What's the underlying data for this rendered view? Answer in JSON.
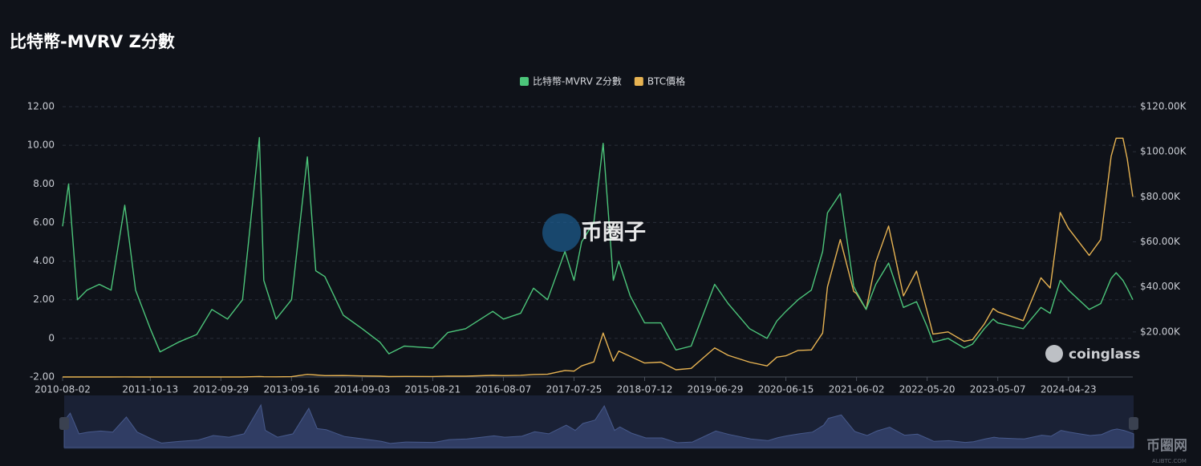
{
  "chart_data": {
    "type": "line",
    "title": "比特幣-MVRV Z分數",
    "x": [
      "2010-08-02",
      "2010-09-01",
      "2010-10-15",
      "2010-12-01",
      "2011-02-01",
      "2011-04-01",
      "2011-06-08",
      "2011-08-01",
      "2011-10-13",
      "2011-12-01",
      "2012-03-01",
      "2012-06-01",
      "2012-08-15",
      "2012-11-01",
      "2013-01-15",
      "2013-04-09",
      "2013-05-01",
      "2013-07-01",
      "2013-09-16",
      "2013-12-04",
      "2014-01-15",
      "2014-03-01",
      "2014-06-01",
      "2014-09-03",
      "2014-12-01",
      "2015-01-14",
      "2015-04-01",
      "2015-08-21",
      "2015-11-04",
      "2016-02-01",
      "2016-06-15",
      "2016-08-07",
      "2016-11-01",
      "2017-01-04",
      "2017-03-15",
      "2017-06-10",
      "2017-07-25",
      "2017-09-01",
      "2017-11-01",
      "2017-12-17",
      "2018-02-06",
      "2018-03-05",
      "2018-05-01",
      "2018-07-12",
      "2018-10-01",
      "2018-12-15",
      "2019-03-01",
      "2019-06-26",
      "2019-09-01",
      "2019-12-17",
      "2020-03-13",
      "2020-05-01",
      "2020-06-15",
      "2020-08-15",
      "2020-10-20",
      "2020-12-15",
      "2021-01-08",
      "2021-03-13",
      "2021-05-19",
      "2021-06-02",
      "2021-07-20",
      "2021-09-06",
      "2021-11-09",
      "2022-01-22",
      "2022-03-28",
      "2022-05-20",
      "2022-06-18",
      "2022-09-01",
      "2022-11-21",
      "2023-01-01",
      "2023-03-01",
      "2023-04-14",
      "2023-05-07",
      "2023-09-11",
      "2023-12-08",
      "2024-01-23",
      "2024-03-13",
      "2024-04-23",
      "2024-08-05",
      "2024-10-01",
      "2024-11-22",
      "2024-12-17",
      "2025-01-20",
      "2025-02-10",
      "2025-03-10"
    ],
    "series": [
      {
        "name": "比特幣-MVRV Z分數",
        "color": "#4cc57a",
        "values": [
          5.8,
          8.0,
          2.0,
          2.5,
          2.8,
          2.5,
          6.9,
          2.5,
          0.5,
          -0.7,
          -0.2,
          0.2,
          1.5,
          1.0,
          2.0,
          10.4,
          3.0,
          1.0,
          2.0,
          9.4,
          3.5,
          3.2,
          1.2,
          0.5,
          -0.2,
          -0.8,
          -0.4,
          -0.5,
          0.3,
          0.5,
          1.4,
          1.0,
          1.3,
          2.6,
          2.0,
          4.5,
          3.0,
          5.0,
          6.0,
          10.1,
          3.0,
          4.0,
          2.2,
          0.8,
          0.8,
          -0.6,
          -0.4,
          2.8,
          1.8,
          0.5,
          0.0,
          0.9,
          1.4,
          2.0,
          2.5,
          4.5,
          6.5,
          7.5,
          2.7,
          2.4,
          1.5,
          2.8,
          3.9,
          1.6,
          1.9,
          0.6,
          -0.2,
          0.0,
          -0.5,
          -0.3,
          0.5,
          1.0,
          0.8,
          0.5,
          1.6,
          1.3,
          3.0,
          2.5,
          1.5,
          1.8,
          3.1,
          3.4,
          3.0,
          2.6,
          2.0
        ]
      },
      {
        "name": "BTC價格",
        "color": "#e7b352",
        "axis": "y2",
        "values": [
          0.07,
          0.06,
          0.1,
          0.25,
          0.9,
          0.8,
          30,
          13,
          4,
          3,
          5,
          6,
          12,
          11,
          15,
          230,
          110,
          80,
          130,
          1150,
          900,
          600,
          650,
          480,
          370,
          180,
          250,
          230,
          400,
          370,
          700,
          590,
          730,
          1100,
          1200,
          2900,
          2600,
          4900,
          6700,
          19500,
          7000,
          11500,
          9200,
          6200,
          6600,
          3200,
          3800,
          12900,
          9600,
          6600,
          4900,
          8800,
          9400,
          11800,
          12000,
          19500,
          40000,
          61000,
          38000,
          37000,
          30000,
          51000,
          67000,
          36000,
          47000,
          29000,
          19000,
          20000,
          15800,
          16600,
          23500,
          30400,
          28900,
          25000,
          44000,
          39500,
          73000,
          66000,
          54000,
          61000,
          98000,
          106000,
          106000,
          97000,
          80000
        ]
      }
    ],
    "xlim": [
      "2010-08-02",
      "2025-03-10"
    ],
    "xticks": [
      "2010-08-02",
      "2011-10-13",
      "2012-09-29",
      "2013-09-16",
      "2014-09-03",
      "2015-08-21",
      "2016-08-07",
      "2017-07-25",
      "2018-07-12",
      "2019-06-29",
      "2020-06-15",
      "2021-06-02",
      "2022-05-20",
      "2023-05-07",
      "2024-04-23"
    ],
    "ylim": [
      -2,
      12
    ],
    "yticks": [
      {
        "value": -2,
        "label": "-2.00"
      },
      {
        "value": 0,
        "label": "0"
      },
      {
        "value": 2,
        "label": "2.00"
      },
      {
        "value": 4,
        "label": "4.00"
      },
      {
        "value": 6,
        "label": "6.00"
      },
      {
        "value": 8,
        "label": "8.00"
      },
      {
        "value": 10,
        "label": "10.00"
      },
      {
        "value": 12,
        "label": "12.00"
      }
    ],
    "y2lim": [
      0,
      120000
    ],
    "y2ticks": [
      {
        "value": 20000,
        "label": "$20.00K"
      },
      {
        "value": 40000,
        "label": "$40.00K"
      },
      {
        "value": 60000,
        "label": "$60.00K"
      },
      {
        "value": 80000,
        "label": "$80.00K"
      },
      {
        "value": 100000,
        "label": "$100.00K"
      },
      {
        "value": 120000,
        "label": "$120.00K"
      }
    ],
    "grid": true,
    "legend": "top"
  },
  "watermarks": {
    "center": "币圈子",
    "corner": "coinglass",
    "site": "币圈网",
    "site_url": "ALIBTC.COM"
  }
}
